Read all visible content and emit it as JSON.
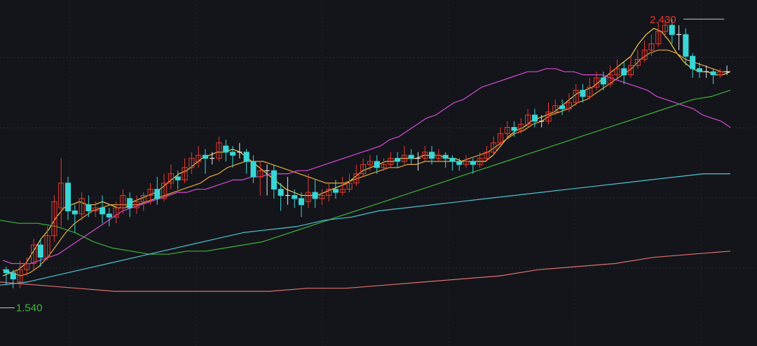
{
  "chart_data": {
    "type": "candlestick",
    "title": "",
    "xlabel": "",
    "ylabel": "",
    "ylim": [
      1.48,
      2.46
    ],
    "grid": true,
    "colors": {
      "background": "#14151a",
      "up": "#e8392f",
      "down": "#3ad6d6",
      "flat": "#e6e6e6",
      "ma5": "#f0d050",
      "ma10": "#e8a83c",
      "ma20": "#d74ad8",
      "ma60": "#3fb23f",
      "ma120": "#4fc3d6",
      "ma250": "#e07070",
      "high_label": "#e8392f",
      "low_label": "#3fb23f"
    },
    "annotations": {
      "high": {
        "text": "2.430",
        "value": 2.43,
        "index": 167
      },
      "low": {
        "text": "1.540",
        "value": 1.54,
        "index": 0
      }
    },
    "candles": [
      [
        1.62,
        1.61,
        1.63,
        1.57
      ],
      [
        1.61,
        1.59,
        1.62,
        1.56
      ],
      [
        1.58,
        1.62,
        1.65,
        1.56
      ],
      [
        1.62,
        1.64,
        1.66,
        1.6
      ],
      [
        1.64,
        1.7,
        1.72,
        1.62
      ],
      [
        1.7,
        1.66,
        1.72,
        1.63
      ],
      [
        1.66,
        1.73,
        1.76,
        1.65
      ],
      [
        1.73,
        1.84,
        1.86,
        1.71
      ],
      [
        1.82,
        1.9,
        1.98,
        1.76
      ],
      [
        1.9,
        1.81,
        1.92,
        1.78
      ],
      [
        1.81,
        1.8,
        1.83,
        1.74
      ],
      [
        1.8,
        1.85,
        1.87,
        1.78
      ],
      [
        1.83,
        1.81,
        1.86,
        1.79
      ],
      [
        1.81,
        1.82,
        1.84,
        1.79
      ],
      [
        1.82,
        1.8,
        1.86,
        1.77
      ],
      [
        1.8,
        1.79,
        1.82,
        1.76
      ],
      [
        1.79,
        1.82,
        1.84,
        1.77
      ],
      [
        1.82,
        1.86,
        1.88,
        1.8
      ],
      [
        1.85,
        1.82,
        1.87,
        1.79
      ],
      [
        1.82,
        1.84,
        1.86,
        1.8
      ],
      [
        1.84,
        1.86,
        1.87,
        1.81
      ],
      [
        1.86,
        1.88,
        1.9,
        1.83
      ],
      [
        1.88,
        1.85,
        1.92,
        1.83
      ],
      [
        1.85,
        1.9,
        1.93,
        1.84
      ],
      [
        1.9,
        1.93,
        1.96,
        1.88
      ],
      [
        1.92,
        1.91,
        1.94,
        1.88
      ],
      [
        1.91,
        1.95,
        1.98,
        1.9
      ],
      [
        1.95,
        1.98,
        2.0,
        1.93
      ],
      [
        1.97,
        1.99,
        2.02,
        1.95
      ],
      [
        1.99,
        1.98,
        2.01,
        1.93
      ],
      [
        1.98,
        1.98,
        2.0,
        1.96
      ],
      [
        1.98,
        2.03,
        2.05,
        1.97
      ],
      [
        2.02,
        2.0,
        2.04,
        1.97
      ],
      [
        2.0,
        1.99,
        2.02,
        1.95
      ],
      [
        2.0,
        2.0,
        2.03,
        1.98
      ],
      [
        2.0,
        1.97,
        2.01,
        1.93
      ],
      [
        1.97,
        1.92,
        1.99,
        1.9
      ],
      [
        1.92,
        1.94,
        1.97,
        1.86
      ],
      [
        1.94,
        1.94,
        1.96,
        1.86
      ],
      [
        1.94,
        1.88,
        1.96,
        1.85
      ],
      [
        1.88,
        1.86,
        1.9,
        1.81
      ],
      [
        1.86,
        1.86,
        1.92,
        1.83
      ],
      [
        1.86,
        1.85,
        1.88,
        1.82
      ],
      [
        1.85,
        1.83,
        1.87,
        1.79
      ],
      [
        1.84,
        1.87,
        1.93,
        1.82
      ],
      [
        1.87,
        1.85,
        1.91,
        1.82
      ],
      [
        1.85,
        1.86,
        1.88,
        1.83
      ],
      [
        1.86,
        1.88,
        1.9,
        1.84
      ],
      [
        1.88,
        1.87,
        1.91,
        1.85
      ],
      [
        1.87,
        1.88,
        1.92,
        1.86
      ],
      [
        1.88,
        1.9,
        1.93,
        1.87
      ],
      [
        1.9,
        1.93,
        1.96,
        1.89
      ],
      [
        1.93,
        1.96,
        1.98,
        1.92
      ],
      [
        1.96,
        1.97,
        1.99,
        1.94
      ],
      [
        1.97,
        1.95,
        1.99,
        1.93
      ],
      [
        1.95,
        1.96,
        1.98,
        1.94
      ],
      [
        1.96,
        1.98,
        2.0,
        1.95
      ],
      [
        1.98,
        1.97,
        2.0,
        1.95
      ],
      [
        1.97,
        1.99,
        2.02,
        1.96
      ],
      [
        1.99,
        1.98,
        2.01,
        1.96
      ],
      [
        1.98,
        1.98,
        2.0,
        1.94
      ],
      [
        1.98,
        2.0,
        2.02,
        1.97
      ],
      [
        2.0,
        1.98,
        2.02,
        1.96
      ],
      [
        1.98,
        1.99,
        2.01,
        1.97
      ],
      [
        1.99,
        1.98,
        2.0,
        1.95
      ],
      [
        1.98,
        1.97,
        1.99,
        1.94
      ],
      [
        1.97,
        1.96,
        1.98,
        1.94
      ],
      [
        1.96,
        1.97,
        1.99,
        1.95
      ],
      [
        1.97,
        1.96,
        1.98,
        1.93
      ],
      [
        1.96,
        1.98,
        2.0,
        1.95
      ],
      [
        1.98,
        2.0,
        2.02,
        1.97
      ],
      [
        2.0,
        2.03,
        2.05,
        1.99
      ],
      [
        2.03,
        2.06,
        2.08,
        2.02
      ],
      [
        2.06,
        2.08,
        2.1,
        2.04
      ],
      [
        2.08,
        2.07,
        2.1,
        2.05
      ],
      [
        2.07,
        2.09,
        2.11,
        2.06
      ],
      [
        2.09,
        2.12,
        2.14,
        2.08
      ],
      [
        2.12,
        2.1,
        2.14,
        2.08
      ],
      [
        2.1,
        2.1,
        2.12,
        2.08
      ],
      [
        2.1,
        2.13,
        2.16,
        2.09
      ],
      [
        2.13,
        2.15,
        2.17,
        2.12
      ],
      [
        2.15,
        2.14,
        2.17,
        2.12
      ],
      [
        2.14,
        2.16,
        2.19,
        2.13
      ],
      [
        2.16,
        2.2,
        2.22,
        2.15
      ],
      [
        2.2,
        2.18,
        2.22,
        2.16
      ],
      [
        2.18,
        2.21,
        2.24,
        2.17
      ],
      [
        2.21,
        2.24,
        2.26,
        2.2
      ],
      [
        2.24,
        2.22,
        2.26,
        2.2
      ],
      [
        2.22,
        2.25,
        2.28,
        2.21
      ],
      [
        2.25,
        2.27,
        2.3,
        2.24
      ],
      [
        2.27,
        2.25,
        2.29,
        2.22
      ],
      [
        2.25,
        2.28,
        2.31,
        2.24
      ],
      [
        2.28,
        2.3,
        2.33,
        2.27
      ],
      [
        2.3,
        2.33,
        2.36,
        2.29
      ],
      [
        2.33,
        2.35,
        2.38,
        2.31
      ],
      [
        2.35,
        2.39,
        2.42,
        2.34
      ],
      [
        2.39,
        2.41,
        2.43,
        2.37
      ],
      [
        2.41,
        2.38,
        2.43,
        2.35
      ],
      [
        2.38,
        2.38,
        2.41,
        2.33
      ],
      [
        2.38,
        2.31,
        2.4,
        2.28
      ],
      [
        2.31,
        2.27,
        2.32,
        2.24
      ],
      [
        2.27,
        2.26,
        2.29,
        2.24
      ],
      [
        2.26,
        2.26,
        2.28,
        2.24
      ],
      [
        2.26,
        2.25,
        2.27,
        2.22
      ],
      [
        2.25,
        2.26,
        2.27,
        2.24
      ],
      [
        2.26,
        2.26,
        2.28,
        2.25
      ]
    ],
    "series": [
      {
        "values": [
          1.6,
          1.61,
          1.62,
          1.64,
          1.68,
          1.72,
          1.75,
          1.79,
          1.82,
          1.83,
          1.84,
          1.83,
          1.83,
          1.84,
          1.83,
          1.82,
          1.82,
          1.84,
          1.85,
          1.86,
          1.87,
          1.89,
          1.91,
          1.93,
          1.94,
          1.96,
          1.98,
          1.99,
          2.0,
          2.0,
          2.01,
          2.0,
          1.98,
          1.96,
          1.94,
          1.92,
          1.9,
          1.88,
          1.87,
          1.86,
          1.86,
          1.86,
          1.87,
          1.88,
          1.89,
          1.9,
          1.92,
          1.94,
          1.95,
          1.96,
          1.97,
          1.97,
          1.98,
          1.98,
          1.98,
          1.99,
          1.99,
          1.99,
          1.98,
          1.98,
          1.97,
          1.97,
          1.97,
          1.97,
          1.99,
          2.02,
          2.05,
          2.07,
          2.08,
          2.1,
          2.11,
          2.12,
          2.13,
          2.15,
          2.17,
          2.19,
          2.2,
          2.21,
          2.23,
          2.25,
          2.27,
          2.29,
          2.31,
          2.35,
          2.38,
          2.4,
          2.39,
          2.36,
          2.32,
          2.29,
          2.27,
          2.26,
          2.26,
          2.25,
          2.25,
          2.26
        ]
      },
      {
        "values": [
          1.62,
          1.61,
          1.6,
          1.61,
          1.63,
          1.66,
          1.7,
          1.74,
          1.77,
          1.79,
          1.81,
          1.82,
          1.83,
          1.83,
          1.83,
          1.83,
          1.84,
          1.85,
          1.86,
          1.87,
          1.88,
          1.89,
          1.9,
          1.92,
          1.93,
          1.95,
          1.96,
          1.97,
          1.97,
          1.97,
          1.96,
          1.95,
          1.94,
          1.93,
          1.92,
          1.91,
          1.9,
          1.9,
          1.9,
          1.91,
          1.92,
          1.93,
          1.94,
          1.95,
          1.95,
          1.96,
          1.96,
          1.97,
          1.97,
          1.97,
          1.97,
          1.97,
          1.98,
          1.99,
          2.0,
          2.02,
          2.04,
          2.06,
          2.07,
          2.09,
          2.1,
          2.12,
          2.13,
          2.14,
          2.16,
          2.17,
          2.19,
          2.21,
          2.23,
          2.25,
          2.27,
          2.3,
          2.32,
          2.33,
          2.33,
          2.32,
          2.3,
          2.29,
          2.28,
          2.27,
          2.26,
          2.26
        ]
      },
      {
        "values": [
          1.65,
          1.64,
          1.64,
          1.64,
          1.65,
          1.66,
          1.67,
          1.69,
          1.71,
          1.73,
          1.75,
          1.77,
          1.79,
          1.81,
          1.82,
          1.83,
          1.84,
          1.85,
          1.86,
          1.87,
          1.87,
          1.88,
          1.88,
          1.89,
          1.9,
          1.91,
          1.91,
          1.92,
          1.92,
          1.93,
          1.93,
          1.93,
          1.94,
          1.94,
          1.95,
          1.96,
          1.97,
          1.98,
          1.99,
          2.0,
          2.01,
          2.02,
          2.04,
          2.05,
          2.07,
          2.09,
          2.11,
          2.12,
          2.14,
          2.16,
          2.17,
          2.19,
          2.21,
          2.22,
          2.23,
          2.24,
          2.25,
          2.26,
          2.26,
          2.27,
          2.27,
          2.26,
          2.26,
          2.25,
          2.25,
          2.25,
          2.24,
          2.23,
          2.22,
          2.21,
          2.2,
          2.18,
          2.17,
          2.16,
          2.15,
          2.14,
          2.12,
          2.11,
          2.1,
          2.08
        ]
      },
      {
        "values": [
          1.78,
          1.77,
          1.77,
          1.76,
          1.74,
          1.71,
          1.69,
          1.68,
          1.67,
          1.67,
          1.68,
          1.68,
          1.69,
          1.7,
          1.71,
          1.73,
          1.75,
          1.77,
          1.79,
          1.81,
          1.83,
          1.85,
          1.87,
          1.89,
          1.91,
          1.93,
          1.95,
          1.97,
          1.99,
          2.01,
          2.03,
          2.05,
          2.07,
          2.09,
          2.11,
          2.13,
          2.15,
          2.17,
          2.18,
          2.2
        ]
      },
      {
        "values": [
          1.57,
          1.58,
          1.6,
          1.62,
          1.64,
          1.66,
          1.68,
          1.7,
          1.72,
          1.74,
          1.75,
          1.76,
          1.78,
          1.79,
          1.81,
          1.82,
          1.83,
          1.84,
          1.85,
          1.86,
          1.87,
          1.88,
          1.89,
          1.9,
          1.91,
          1.92,
          1.93,
          1.93
        ]
      },
      {
        "values": [
          1.58,
          1.57,
          1.56,
          1.55,
          1.55,
          1.55,
          1.55,
          1.55,
          1.56,
          1.56,
          1.57,
          1.58,
          1.59,
          1.6,
          1.62,
          1.63,
          1.64,
          1.66,
          1.67,
          1.68
        ]
      }
    ]
  }
}
